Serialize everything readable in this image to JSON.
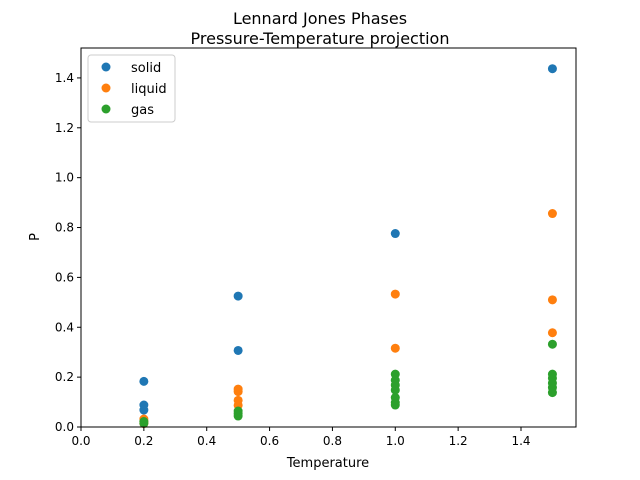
{
  "chart_data": {
    "type": "scatter",
    "title": "Lennard Jones Phases",
    "subtitle": "Pressure-Temperature projection",
    "xlabel": "Temperature",
    "ylabel": "P",
    "xlim": [
      0.0,
      1.575
    ],
    "ylim": [
      0.0,
      1.52
    ],
    "xticks": [
      "0.0",
      "0.2",
      "0.4",
      "0.6",
      "0.8",
      "1.0",
      "1.2",
      "1.4"
    ],
    "yticks": [
      "0.0",
      "0.2",
      "0.4",
      "0.6",
      "0.8",
      "1.0",
      "1.2",
      "1.4"
    ],
    "grid": false,
    "legend_position": "top-left",
    "series": [
      {
        "name": "solid",
        "color": "#1f77b4",
        "points": [
          {
            "x": 0.2,
            "y": 0.183
          },
          {
            "x": 0.2,
            "y": 0.088
          },
          {
            "x": 0.2,
            "y": 0.068
          },
          {
            "x": 0.5,
            "y": 0.525
          },
          {
            "x": 0.5,
            "y": 0.307
          },
          {
            "x": 1.0,
            "y": 0.776
          },
          {
            "x": 1.5,
            "y": 1.437
          }
        ]
      },
      {
        "name": "liquid",
        "color": "#ff7f0e",
        "points": [
          {
            "x": 0.2,
            "y": 0.032
          },
          {
            "x": 0.2,
            "y": 0.022
          },
          {
            "x": 0.2,
            "y": 0.014
          },
          {
            "x": 0.5,
            "y": 0.152
          },
          {
            "x": 0.5,
            "y": 0.142
          },
          {
            "x": 0.5,
            "y": 0.107
          },
          {
            "x": 0.5,
            "y": 0.087
          },
          {
            "x": 1.0,
            "y": 0.533
          },
          {
            "x": 1.0,
            "y": 0.316
          },
          {
            "x": 1.5,
            "y": 0.856
          },
          {
            "x": 1.5,
            "y": 0.51
          },
          {
            "x": 1.5,
            "y": 0.378
          }
        ]
      },
      {
        "name": "gas",
        "color": "#2ca02c",
        "points": [
          {
            "x": 0.2,
            "y": 0.022
          },
          {
            "x": 0.2,
            "y": 0.015
          },
          {
            "x": 0.5,
            "y": 0.064
          },
          {
            "x": 0.5,
            "y": 0.054
          },
          {
            "x": 0.5,
            "y": 0.044
          },
          {
            "x": 1.0,
            "y": 0.212
          },
          {
            "x": 1.0,
            "y": 0.188
          },
          {
            "x": 1.0,
            "y": 0.168
          },
          {
            "x": 1.0,
            "y": 0.148
          },
          {
            "x": 1.0,
            "y": 0.118
          },
          {
            "x": 1.0,
            "y": 0.098
          },
          {
            "x": 1.0,
            "y": 0.088
          },
          {
            "x": 1.5,
            "y": 0.332
          },
          {
            "x": 1.5,
            "y": 0.212
          },
          {
            "x": 1.5,
            "y": 0.196
          },
          {
            "x": 1.5,
            "y": 0.176
          },
          {
            "x": 1.5,
            "y": 0.158
          },
          {
            "x": 1.5,
            "y": 0.138
          }
        ]
      }
    ]
  }
}
